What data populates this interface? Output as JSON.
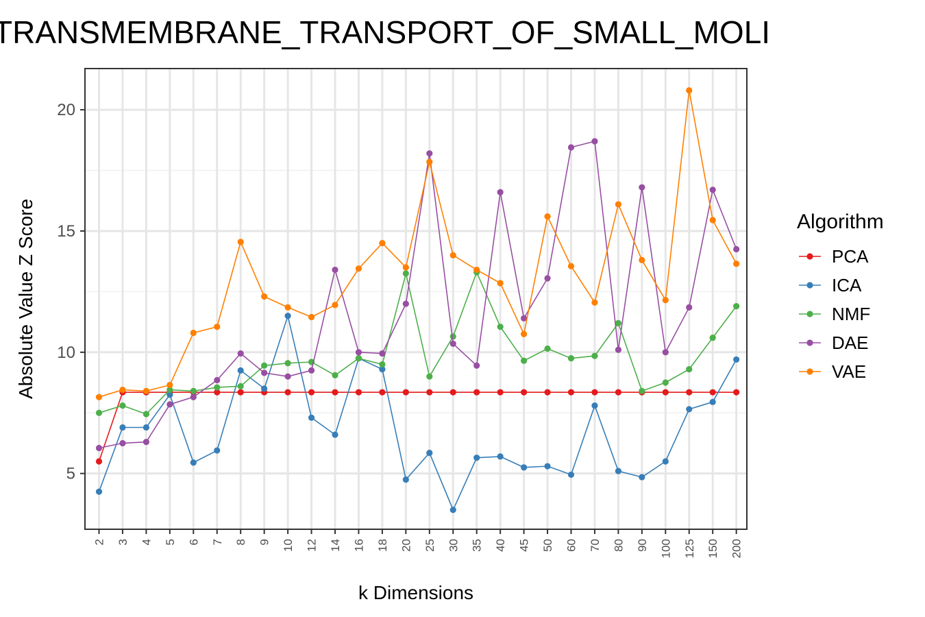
{
  "chart_data": {
    "type": "line",
    "title": "TRANSMEMBRANE_TRANSPORT_OF_SMALL_MOLI",
    "xlabel": "k Dimensions",
    "ylabel": "Absolute Value Z Score",
    "categories": [
      "2",
      "3",
      "4",
      "5",
      "6",
      "7",
      "8",
      "9",
      "10",
      "12",
      "14",
      "16",
      "18",
      "20",
      "25",
      "30",
      "35",
      "40",
      "45",
      "50",
      "60",
      "70",
      "80",
      "90",
      "100",
      "125",
      "150",
      "200"
    ],
    "yticks": [
      5,
      10,
      15,
      20
    ],
    "ylim": [
      2.7,
      21.7
    ],
    "grid": true,
    "legend": {
      "title": "Algorithm",
      "placement": "right"
    },
    "series": [
      {
        "name": "PCA",
        "color": "#e41a1c",
        "values": [
          5.5,
          8.35,
          8.35,
          8.35,
          8.35,
          8.35,
          8.35,
          8.35,
          8.35,
          8.35,
          8.35,
          8.35,
          8.35,
          8.35,
          8.35,
          8.35,
          8.35,
          8.35,
          8.35,
          8.35,
          8.35,
          8.35,
          8.35,
          8.35,
          8.35,
          8.35,
          8.35,
          8.35
        ]
      },
      {
        "name": "ICA",
        "color": "#377eb8",
        "values": [
          4.25,
          6.9,
          6.9,
          8.25,
          5.45,
          5.95,
          9.25,
          8.5,
          11.5,
          7.3,
          6.6,
          9.75,
          9.3,
          4.75,
          5.85,
          3.5,
          5.65,
          5.7,
          5.25,
          5.3,
          4.95,
          7.8,
          5.1,
          4.85,
          5.5,
          7.65,
          7.95,
          9.7
        ]
      },
      {
        "name": "NMF",
        "color": "#4daf4a",
        "values": [
          7.5,
          7.8,
          7.45,
          8.45,
          8.4,
          8.55,
          8.6,
          9.45,
          9.55,
          9.6,
          9.05,
          9.75,
          9.5,
          13.25,
          9.0,
          10.65,
          13.3,
          11.05,
          9.65,
          10.15,
          9.75,
          9.85,
          11.2,
          8.4,
          8.75,
          9.3,
          10.6,
          11.9
        ]
      },
      {
        "name": "DAE",
        "color": "#984ea3",
        "values": [
          6.05,
          6.25,
          6.3,
          7.85,
          8.15,
          8.85,
          9.95,
          9.15,
          9.0,
          9.25,
          13.4,
          10.0,
          9.95,
          12.0,
          18.2,
          10.35,
          9.45,
          16.6,
          11.4,
          13.05,
          18.45,
          18.7,
          10.1,
          16.8,
          10.0,
          11.85,
          16.7,
          14.25
        ]
      },
      {
        "name": "VAE",
        "color": "#ff7f00",
        "values": [
          8.15,
          8.45,
          8.4,
          8.65,
          10.8,
          11.05,
          14.55,
          12.3,
          11.85,
          11.45,
          11.95,
          13.45,
          14.5,
          13.5,
          17.85,
          14.0,
          13.4,
          12.85,
          10.75,
          15.6,
          13.55,
          12.05,
          16.1,
          13.8,
          12.15,
          20.8,
          15.45,
          13.65
        ]
      }
    ]
  }
}
